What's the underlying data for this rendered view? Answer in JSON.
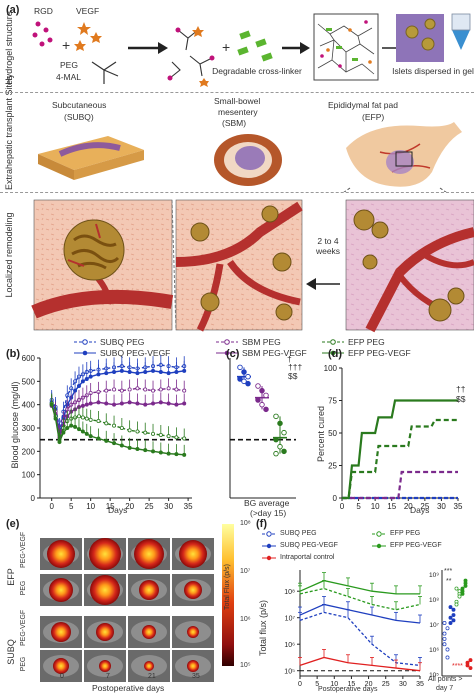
{
  "panel_a": {
    "label": "(a)",
    "rows": [
      "Hydrogel structure",
      "Extrahepatic transplant Sites",
      "Localized remodeling"
    ],
    "reagents": {
      "rgd": "RGD",
      "vegf": "VEGF",
      "peg": "PEG",
      "mal": "4-MAL",
      "crosslinker": "Degradable cross-linker",
      "islets": "Islets dispersed in gel"
    },
    "sites": {
      "subq": "Subcutaneous",
      "subq_abbr": "(SUBQ)",
      "sbm": "Small-bowel",
      "sbm2": "mesentery",
      "sbm_abbr": "(SBM)",
      "efp": "Epididymal fat pad",
      "efp_abbr": "(EFP)"
    },
    "remodel_time": "2 to 4 weeks"
  },
  "legend_bcd": {
    "items": [
      "SUBQ PEG",
      "SUBQ PEG-VEGF",
      "SBM PEG",
      "SBM PEG-VEGF",
      "EFP PEG",
      "EFP PEG-VEGF"
    ],
    "colors": {
      "subq": "#1f3fbf",
      "sbm": "#7b2a8c",
      "efp": "#2a7a1e"
    }
  },
  "panel_b": {
    "label": "(b)",
    "ylabel": "Blood glucose (mg/dl)",
    "xlabel": "Days",
    "yticks": [
      "600",
      "500",
      "400",
      "300",
      "200",
      "100",
      "0"
    ],
    "xticks": [
      "0",
      "5",
      "10",
      "15",
      "20",
      "25",
      "30",
      "35"
    ]
  },
  "panel_c": {
    "label": "(c)",
    "xlabel": "BG average",
    "xlabel2": "(>day 15)",
    "mark1": "†",
    "mark2": "†††",
    "mark3": "$$"
  },
  "panel_d": {
    "label": "(d)",
    "ylabel": "Percent cured",
    "xlabel": "Days",
    "yticks": [
      "100",
      "75",
      "50",
      "25",
      "0"
    ],
    "xticks": [
      "0",
      "5",
      "10",
      "15",
      "20",
      "25",
      "30",
      "35"
    ],
    "mark1": "††",
    "mark2": "$$"
  },
  "panel_e": {
    "label": "(e)",
    "rows": [
      "PEG-VEGF",
      "PEG",
      "PEG-VEGF",
      "PEG"
    ],
    "groups": [
      "EFP",
      "SUBQ"
    ],
    "cols": [
      "0",
      "7",
      "21",
      "35"
    ],
    "xlabel": "Postoperative days",
    "cbar_label": "Total Flux (p/s)",
    "cbar_ticks": [
      "10⁸",
      "10⁷",
      "10⁶",
      "10⁵"
    ]
  },
  "panel_f": {
    "label": "(f)",
    "ylabel": "Total flux (p/s)",
    "xlabel": "Postoperative days",
    "yticks": [
      "10⁸",
      "10⁷",
      "10⁶",
      "10⁵"
    ],
    "xticks": [
      "0",
      "5",
      "10",
      "15",
      "20",
      "25",
      "30",
      "35"
    ],
    "legend": [
      "SUBQ PEG",
      "SUBQ PEG-VEGF",
      "Intraportal control",
      "EFP PEG",
      "EFP PEG-VEGF"
    ],
    "side_yticks": [
      "10⁹",
      "10⁸",
      "10⁷",
      "10⁶",
      "10⁵"
    ],
    "side_xlabel": "All points >",
    "side_xlabel2": "day 7",
    "stars": "***",
    "stars2": "**",
    "stars3": "****"
  },
  "chart_data": [
    {
      "type": "line",
      "panel": "b",
      "x": [
        0,
        1,
        2,
        3,
        4,
        5,
        6,
        7,
        8,
        9,
        10,
        12,
        14,
        16,
        18,
        20,
        22,
        24,
        26,
        28,
        30,
        32,
        34
      ],
      "series": [
        {
          "name": "SUBQ PEG",
          "values": [
            420,
            390,
            300,
            370,
            440,
            470,
            500,
            520,
            530,
            540,
            545,
            550,
            555,
            560,
            565,
            560,
            555,
            560,
            565,
            570,
            565,
            560,
            565
          ]
        },
        {
          "name": "SUBQ PEG-VEGF",
          "values": [
            410,
            380,
            280,
            340,
            400,
            430,
            460,
            480,
            500,
            510,
            520,
            530,
            535,
            540,
            545,
            540,
            535,
            540,
            545,
            540,
            535,
            540,
            545
          ]
        },
        {
          "name": "SBM PEG",
          "values": [
            400,
            370,
            270,
            330,
            380,
            400,
            410,
            420,
            430,
            440,
            450,
            455,
            460,
            465,
            460,
            465,
            470,
            465,
            460,
            465,
            470,
            465,
            460
          ]
        },
        {
          "name": "SBM PEG-VEGF",
          "values": [
            395,
            360,
            260,
            310,
            350,
            370,
            380,
            390,
            395,
            400,
            405,
            410,
            405,
            400,
            405,
            410,
            405,
            400,
            405,
            410,
            405,
            400,
            405
          ]
        },
        {
          "name": "EFP PEG",
          "values": [
            405,
            350,
            250,
            300,
            330,
            340,
            345,
            350,
            345,
            340,
            335,
            330,
            320,
            310,
            300,
            290,
            285,
            280,
            275,
            270,
            265,
            260,
            255
          ]
        },
        {
          "name": "EFP PEG-VEGF",
          "values": [
            400,
            340,
            240,
            280,
            300,
            310,
            305,
            295,
            285,
            275,
            265,
            255,
            245,
            235,
            225,
            215,
            210,
            205,
            200,
            195,
            190,
            188,
            185
          ]
        }
      ],
      "threshold": 250,
      "ylim": [
        0,
        600
      ],
      "xlim": [
        -3,
        36
      ]
    },
    {
      "type": "scatter",
      "panel": "c",
      "series": [
        {
          "name": "SUBQ",
          "values": [
            560,
            540,
            520,
            510,
            500,
            490
          ]
        },
        {
          "name": "SBM",
          "values": [
            480,
            460,
            440,
            420,
            400,
            380
          ]
        },
        {
          "name": "EFP",
          "values": [
            350,
            320,
            280,
            250,
            220,
            200,
            190
          ]
        }
      ],
      "ylim": [
        0,
        600
      ]
    },
    {
      "type": "line",
      "panel": "d",
      "series": [
        {
          "name": "SUBQ",
          "x": [
            0,
            35
          ],
          "values": [
            0,
            0
          ]
        },
        {
          "name": "SBM",
          "x": [
            0,
            17,
            18,
            35
          ],
          "values": [
            0,
            0,
            20,
            20
          ]
        },
        {
          "name": "EFP PEG",
          "x": [
            0,
            2,
            3,
            10,
            11,
            20,
            21,
            27,
            28,
            35
          ],
          "values": [
            0,
            0,
            20,
            20,
            40,
            40,
            55,
            55,
            60,
            60
          ]
        },
        {
          "name": "EFP PEG-VEGF",
          "x": [
            0,
            2,
            3,
            5,
            6,
            10,
            11,
            15,
            16,
            35
          ],
          "values": [
            0,
            0,
            25,
            25,
            50,
            50,
            62,
            62,
            75,
            75
          ]
        }
      ],
      "ylim": [
        0,
        100
      ],
      "xlim": [
        0,
        35
      ]
    },
    {
      "type": "line",
      "panel": "f",
      "x": [
        0,
        7,
        14,
        21,
        28,
        35
      ],
      "series": [
        {
          "name": "SUBQ PEG",
          "values": [
            6.9,
            7.2,
            7.0,
            6.0,
            5.3,
            5.2
          ]
        },
        {
          "name": "SUBQ PEG-VEGF",
          "values": [
            7.1,
            7.5,
            7.3,
            7.1,
            6.9,
            6.8
          ]
        },
        {
          "name": "Intraportal control",
          "values": [
            5.2,
            5.5,
            5.3,
            5.2,
            5.1,
            5.0
          ]
        },
        {
          "name": "EFP PEG",
          "values": [
            7.9,
            8.1,
            7.8,
            7.5,
            7.3,
            7.5
          ]
        },
        {
          "name": "EFP PEG-VEGF",
          "values": [
            8.0,
            8.4,
            8.2,
            8.0,
            7.9,
            7.9
          ]
        }
      ],
      "ylim": [
        4.8,
        8.8
      ],
      "xlim": [
        0,
        35
      ]
    }
  ]
}
